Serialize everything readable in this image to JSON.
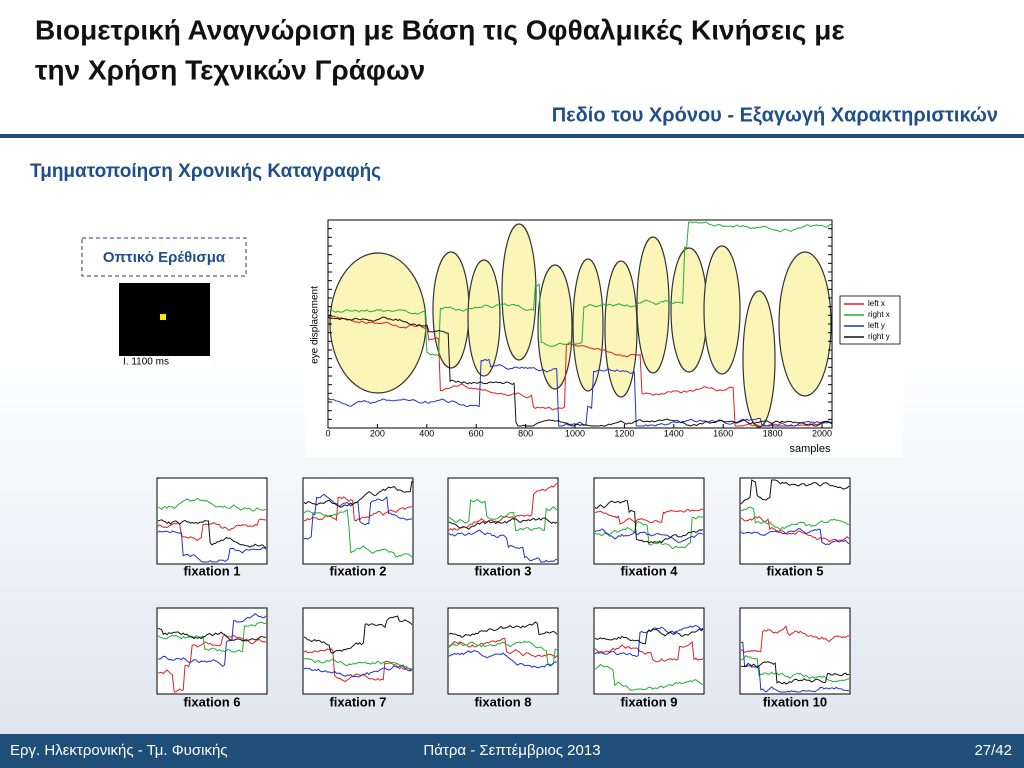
{
  "header": {
    "title_lines": [
      "Βιομετρική Αναγνώριση με Βάση τις Οφθαλμικές Κινήσεις με",
      "την Χρήση Τεχνικών Γράφων"
    ],
    "subtitle": "Πεδίο του Χρόνου - Εξαγωγή Χαρακτηριστικών"
  },
  "section_title": "Τμηματοποίηση Χρονικής Καταγραφής",
  "stimulus": {
    "label": "Οπτικό Ερέθισμα",
    "caption": "I. 1100 ms"
  },
  "main_plot": {
    "y_label": "eye displacement",
    "x_label": "samples",
    "x_ticks": [
      "0",
      "200",
      "400",
      "600",
      "800",
      "1000",
      "1200",
      "1400",
      "1600",
      "1800",
      "2000"
    ],
    "legend": [
      "left x",
      "right x",
      "left y",
      "right y"
    ]
  },
  "fixations": [
    "fixation 1",
    "fixation 2",
    "fixation 3",
    "fixation 4",
    "fixation 5",
    "fixation 6",
    "fixation 7",
    "fixation 8",
    "fixation 9",
    "fixation 10"
  ],
  "footer": {
    "left": "Εργ. Ηλεκτρονικής - Τμ. Φυσικής",
    "center": "Πάτρα - Σεπτέμβριος 2013",
    "right": "27/42"
  }
}
